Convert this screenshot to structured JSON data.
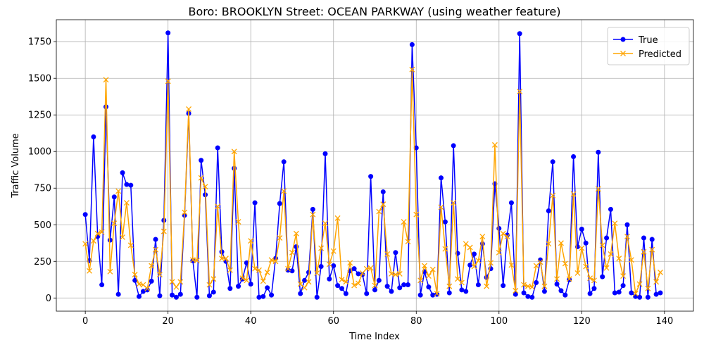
{
  "chart_data": {
    "type": "line",
    "title": "Boro: BROOKLYN Street: OCEAN PARKWAY (using weather feature)",
    "xlabel": "Time Index",
    "ylabel": "Traffic Volume",
    "xlim": [
      -7,
      147
    ],
    "ylim": [
      -90,
      1900
    ],
    "xticks": [
      0,
      20,
      40,
      60,
      80,
      100,
      120,
      140
    ],
    "yticks": [
      0,
      250,
      500,
      750,
      1000,
      1250,
      1500,
      1750
    ],
    "grid": true,
    "legend_position": "top-right",
    "series": [
      {
        "name": "True",
        "color": "#0000ff",
        "marker": "circle",
        "values": [
          570,
          255,
          1100,
          420,
          90,
          1305,
          395,
          690,
          25,
          855,
          775,
          770,
          120,
          10,
          45,
          55,
          115,
          400,
          15,
          530,
          1810,
          20,
          5,
          25,
          565,
          1260,
          255,
          5,
          940,
          705,
          15,
          40,
          1025,
          315,
          250,
          65,
          885,
          80,
          130,
          240,
          95,
          650,
          5,
          10,
          70,
          20,
          270,
          645,
          930,
          190,
          185,
          350,
          30,
          120,
          175,
          605,
          5,
          215,
          985,
          130,
          220,
          85,
          65,
          30,
          185,
          200,
          165,
          160,
          30,
          830,
          55,
          120,
          725,
          80,
          45,
          310,
          70,
          90,
          90,
          1730,
          1025,
          20,
          180,
          75,
          20,
          25,
          820,
          520,
          35,
          1040,
          305,
          55,
          45,
          225,
          300,
          90,
          370,
          140,
          200,
          780,
          475,
          85,
          430,
          650,
          25,
          1805,
          35,
          10,
          5,
          105,
          260,
          45,
          595,
          930,
          95,
          50,
          20,
          125,
          965,
          350,
          470,
          375,
          30,
          65,
          995,
          145,
          410,
          605,
          35,
          40,
          85,
          500,
          35,
          10,
          5,
          410,
          5,
          400,
          25,
          35
        ]
      },
      {
        "name": "Predicted",
        "color": "#ffa500",
        "marker": "x",
        "values": [
          370,
          185,
          390,
          440,
          450,
          1490,
          180,
          510,
          730,
          415,
          650,
          360,
          160,
          95,
          90,
          65,
          220,
          330,
          160,
          455,
          1480,
          110,
          75,
          110,
          585,
          1290,
          260,
          255,
          820,
          760,
          90,
          130,
          625,
          270,
          270,
          190,
          1000,
          520,
          135,
          120,
          390,
          200,
          190,
          115,
          175,
          260,
          250,
          410,
          730,
          200,
          310,
          440,
          95,
          70,
          110,
          570,
          170,
          340,
          510,
          230,
          320,
          545,
          125,
          110,
          240,
          85,
          100,
          170,
          200,
          205,
          85,
          590,
          640,
          300,
          165,
          160,
          165,
          520,
          385,
          1560,
          570,
          120,
          220,
          150,
          195,
          30,
          620,
          335,
          80,
          650,
          130,
          105,
          370,
          345,
          215,
          255,
          420,
          80,
          240,
          1045,
          310,
          440,
          420,
          225,
          50,
          1410,
          90,
          80,
          75,
          220,
          245,
          80,
          370,
          700,
          130,
          375,
          235,
          130,
          710,
          170,
          340,
          215,
          135,
          120,
          745,
          360,
          205,
          300,
          510,
          270,
          150,
          420,
          260,
          30,
          95,
          315,
          65,
          330,
          110,
          175
        ]
      }
    ]
  }
}
